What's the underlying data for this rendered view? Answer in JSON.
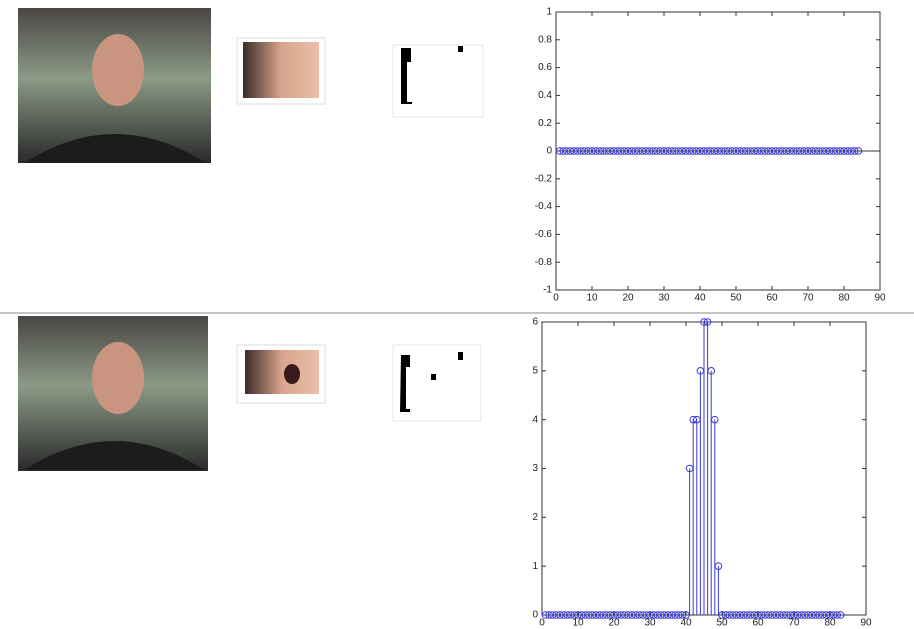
{
  "chart_data": [
    {
      "type": "stem",
      "color": "#3a3ad6",
      "x": [
        1,
        2,
        3,
        4,
        5,
        6,
        7,
        8,
        9,
        10,
        11,
        12,
        13,
        14,
        15,
        16,
        17,
        18,
        19,
        20,
        21,
        22,
        23,
        24,
        25,
        26,
        27,
        28,
        29,
        30,
        31,
        32,
        33,
        34,
        35,
        36,
        37,
        38,
        39,
        40,
        41,
        42,
        43,
        44,
        45,
        46,
        47,
        48,
        49,
        50,
        51,
        52,
        53,
        54,
        55,
        56,
        57,
        58,
        59,
        60,
        61,
        62,
        63,
        64,
        65,
        66,
        67,
        68,
        69,
        70,
        71,
        72,
        73,
        74,
        75,
        76,
        77,
        78,
        79,
        80,
        81,
        82,
        83,
        84
      ],
      "values": [
        0,
        0,
        0,
        0,
        0,
        0,
        0,
        0,
        0,
        0,
        0,
        0,
        0,
        0,
        0,
        0,
        0,
        0,
        0,
        0,
        0,
        0,
        0,
        0,
        0,
        0,
        0,
        0,
        0,
        0,
        0,
        0,
        0,
        0,
        0,
        0,
        0,
        0,
        0,
        0,
        0,
        0,
        0,
        0,
        0,
        0,
        0,
        0,
        0,
        0,
        0,
        0,
        0,
        0,
        0,
        0,
        0,
        0,
        0,
        0,
        0,
        0,
        0,
        0,
        0,
        0,
        0,
        0,
        0,
        0,
        0,
        0,
        0,
        0,
        0,
        0,
        0,
        0,
        0,
        0,
        0,
        0,
        0,
        0
      ],
      "xlim": [
        0,
        90
      ],
      "xticks": [
        0,
        10,
        20,
        30,
        40,
        50,
        60,
        70,
        80,
        90
      ],
      "ylim": [
        -1,
        1
      ],
      "yticks": [
        -1,
        -0.8,
        -0.6,
        -0.4,
        -0.2,
        0,
        0.2,
        0.4,
        0.6,
        0.8,
        1
      ]
    },
    {
      "type": "stem",
      "color": "#3a3ad6",
      "x": [
        1,
        2,
        3,
        4,
        5,
        6,
        7,
        8,
        9,
        10,
        11,
        12,
        13,
        14,
        15,
        16,
        17,
        18,
        19,
        20,
        21,
        22,
        23,
        24,
        25,
        26,
        27,
        28,
        29,
        30,
        31,
        32,
        33,
        34,
        35,
        36,
        37,
        38,
        39,
        40,
        41,
        42,
        43,
        44,
        45,
        46,
        47,
        48,
        49,
        50,
        51,
        52,
        53,
        54,
        55,
        56,
        57,
        58,
        59,
        60,
        61,
        62,
        63,
        64,
        65,
        66,
        67,
        68,
        69,
        70,
        71,
        72,
        73,
        74,
        75,
        76,
        77,
        78,
        79,
        80,
        81,
        82,
        83
      ],
      "values": [
        0,
        0,
        0,
        0,
        0,
        0,
        0,
        0,
        0,
        0,
        0,
        0,
        0,
        0,
        0,
        0,
        0,
        0,
        0,
        0,
        0,
        0,
        0,
        0,
        0,
        0,
        0,
        0,
        0,
        0,
        0,
        0,
        0,
        0,
        0,
        0,
        0,
        0,
        0,
        0,
        3,
        4,
        4,
        5,
        6,
        6,
        5,
        4,
        1,
        0,
        0,
        0,
        0,
        0,
        0,
        0,
        0,
        0,
        0,
        0,
        0,
        0,
        0,
        0,
        0,
        0,
        0,
        0,
        0,
        0,
        0,
        0,
        0,
        0,
        0,
        0,
        0,
        0,
        0,
        0,
        0,
        0,
        0
      ],
      "xlim": [
        0,
        90
      ],
      "xticks": [
        0,
        10,
        20,
        30,
        40,
        50,
        60,
        70,
        80,
        90
      ],
      "ylim": [
        0,
        6
      ],
      "yticks": [
        0,
        1,
        2,
        3,
        4,
        5,
        6
      ]
    }
  ]
}
